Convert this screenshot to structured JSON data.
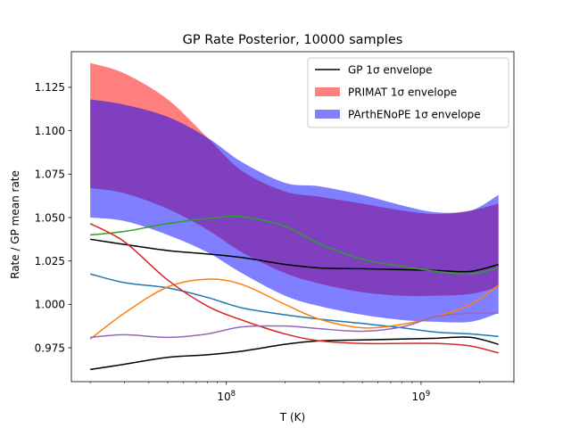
{
  "chart_data": {
    "type": "line",
    "title": "GP Rate Posterior, 10000 samples",
    "xlabel": "T (K)",
    "ylabel": "Rate / GP mean rate",
    "xscale": "log",
    "xlim": [
      16000000,
      3000000000
    ],
    "ylim": [
      0.9555,
      1.1455
    ],
    "yticks": [
      "0.975",
      "1.000",
      "1.025",
      "1.050",
      "1.075",
      "1.100",
      "1.125"
    ],
    "xticks": [
      {
        "base": "10",
        "exp": "8",
        "value": 100000000
      },
      {
        "base": "10",
        "exp": "9",
        "value": 1000000000
      }
    ],
    "grid": false,
    "legend_position": "top-right",
    "legend": [
      {
        "label": "GP 1σ envelope",
        "kind": "line",
        "color": "#000000"
      },
      {
        "label": "PRIMAT 1σ envelope",
        "kind": "patch",
        "color": "#ff8080"
      },
      {
        "label": "PArthENoPE 1σ envelope",
        "kind": "patch",
        "color": "#8080ff"
      }
    ],
    "x": [
      20000000,
      30000000,
      50000000,
      80000000,
      120000000,
      200000000,
      300000000,
      500000000,
      800000000,
      1200000000,
      1800000000,
      2500000000
    ],
    "bands": [
      {
        "name": "PRIMAT 1σ envelope",
        "color": "#ff0000",
        "alpha": 0.5,
        "upper": [
          1.139,
          1.133,
          1.118,
          1.096,
          1.077,
          1.065,
          1.062,
          1.058,
          1.054,
          1.052,
          1.054,
          1.058
        ],
        "lower": [
          1.067,
          1.064,
          1.055,
          1.043,
          1.03,
          1.018,
          1.012,
          1.007,
          1.005,
          1.005,
          1.006,
          1.01
        ]
      },
      {
        "name": "PArthENoPE 1σ envelope",
        "color": "#0000ff",
        "alpha": 0.5,
        "upper": [
          1.118,
          1.115,
          1.108,
          1.096,
          1.082,
          1.07,
          1.068,
          1.063,
          1.057,
          1.053,
          1.054,
          1.063
        ],
        "lower": [
          1.05,
          1.048,
          1.04,
          1.03,
          1.018,
          1.005,
          0.999,
          0.994,
          0.991,
          0.99,
          0.99,
          0.995
        ]
      }
    ],
    "series": [
      {
        "name": "GP 1σ envelope",
        "color": "#000000",
        "values": [
          1.0375,
          1.0345,
          1.031,
          1.029,
          1.027,
          1.023,
          1.021,
          1.0205,
          1.02,
          1.0195,
          1.019,
          1.023
        ]
      },
      {
        "color": "#000000",
        "values": [
          0.9625,
          0.9655,
          0.9695,
          0.971,
          0.973,
          0.977,
          0.979,
          0.9795,
          0.98,
          0.9805,
          0.981,
          0.977
        ]
      },
      {
        "color": "#1f77b4",
        "values": [
          1.0175,
          1.0125,
          1.0095,
          1.004,
          0.998,
          0.994,
          0.9915,
          0.989,
          0.9865,
          0.984,
          0.983,
          0.9815
        ]
      },
      {
        "color": "#ff7f0e",
        "values": [
          0.98,
          0.995,
          1.01,
          1.0145,
          1.0115,
          1.0,
          0.9915,
          0.9865,
          0.9885,
          0.993,
          1.0,
          1.011
        ]
      },
      {
        "color": "#2ca02c",
        "values": [
          1.04,
          1.042,
          1.0465,
          1.0495,
          1.0505,
          1.045,
          1.035,
          1.026,
          1.022,
          1.019,
          1.0175,
          1.021
        ]
      },
      {
        "color": "#d62728",
        "values": [
          1.0465,
          1.036,
          1.014,
          0.999,
          0.991,
          0.983,
          0.979,
          0.9775,
          0.9775,
          0.9775,
          0.976,
          0.972
        ]
      },
      {
        "color": "#9467bd",
        "values": [
          0.981,
          0.9825,
          0.981,
          0.983,
          0.987,
          0.9875,
          0.986,
          0.9845,
          0.987,
          0.993,
          0.995,
          0.995
        ]
      }
    ]
  }
}
